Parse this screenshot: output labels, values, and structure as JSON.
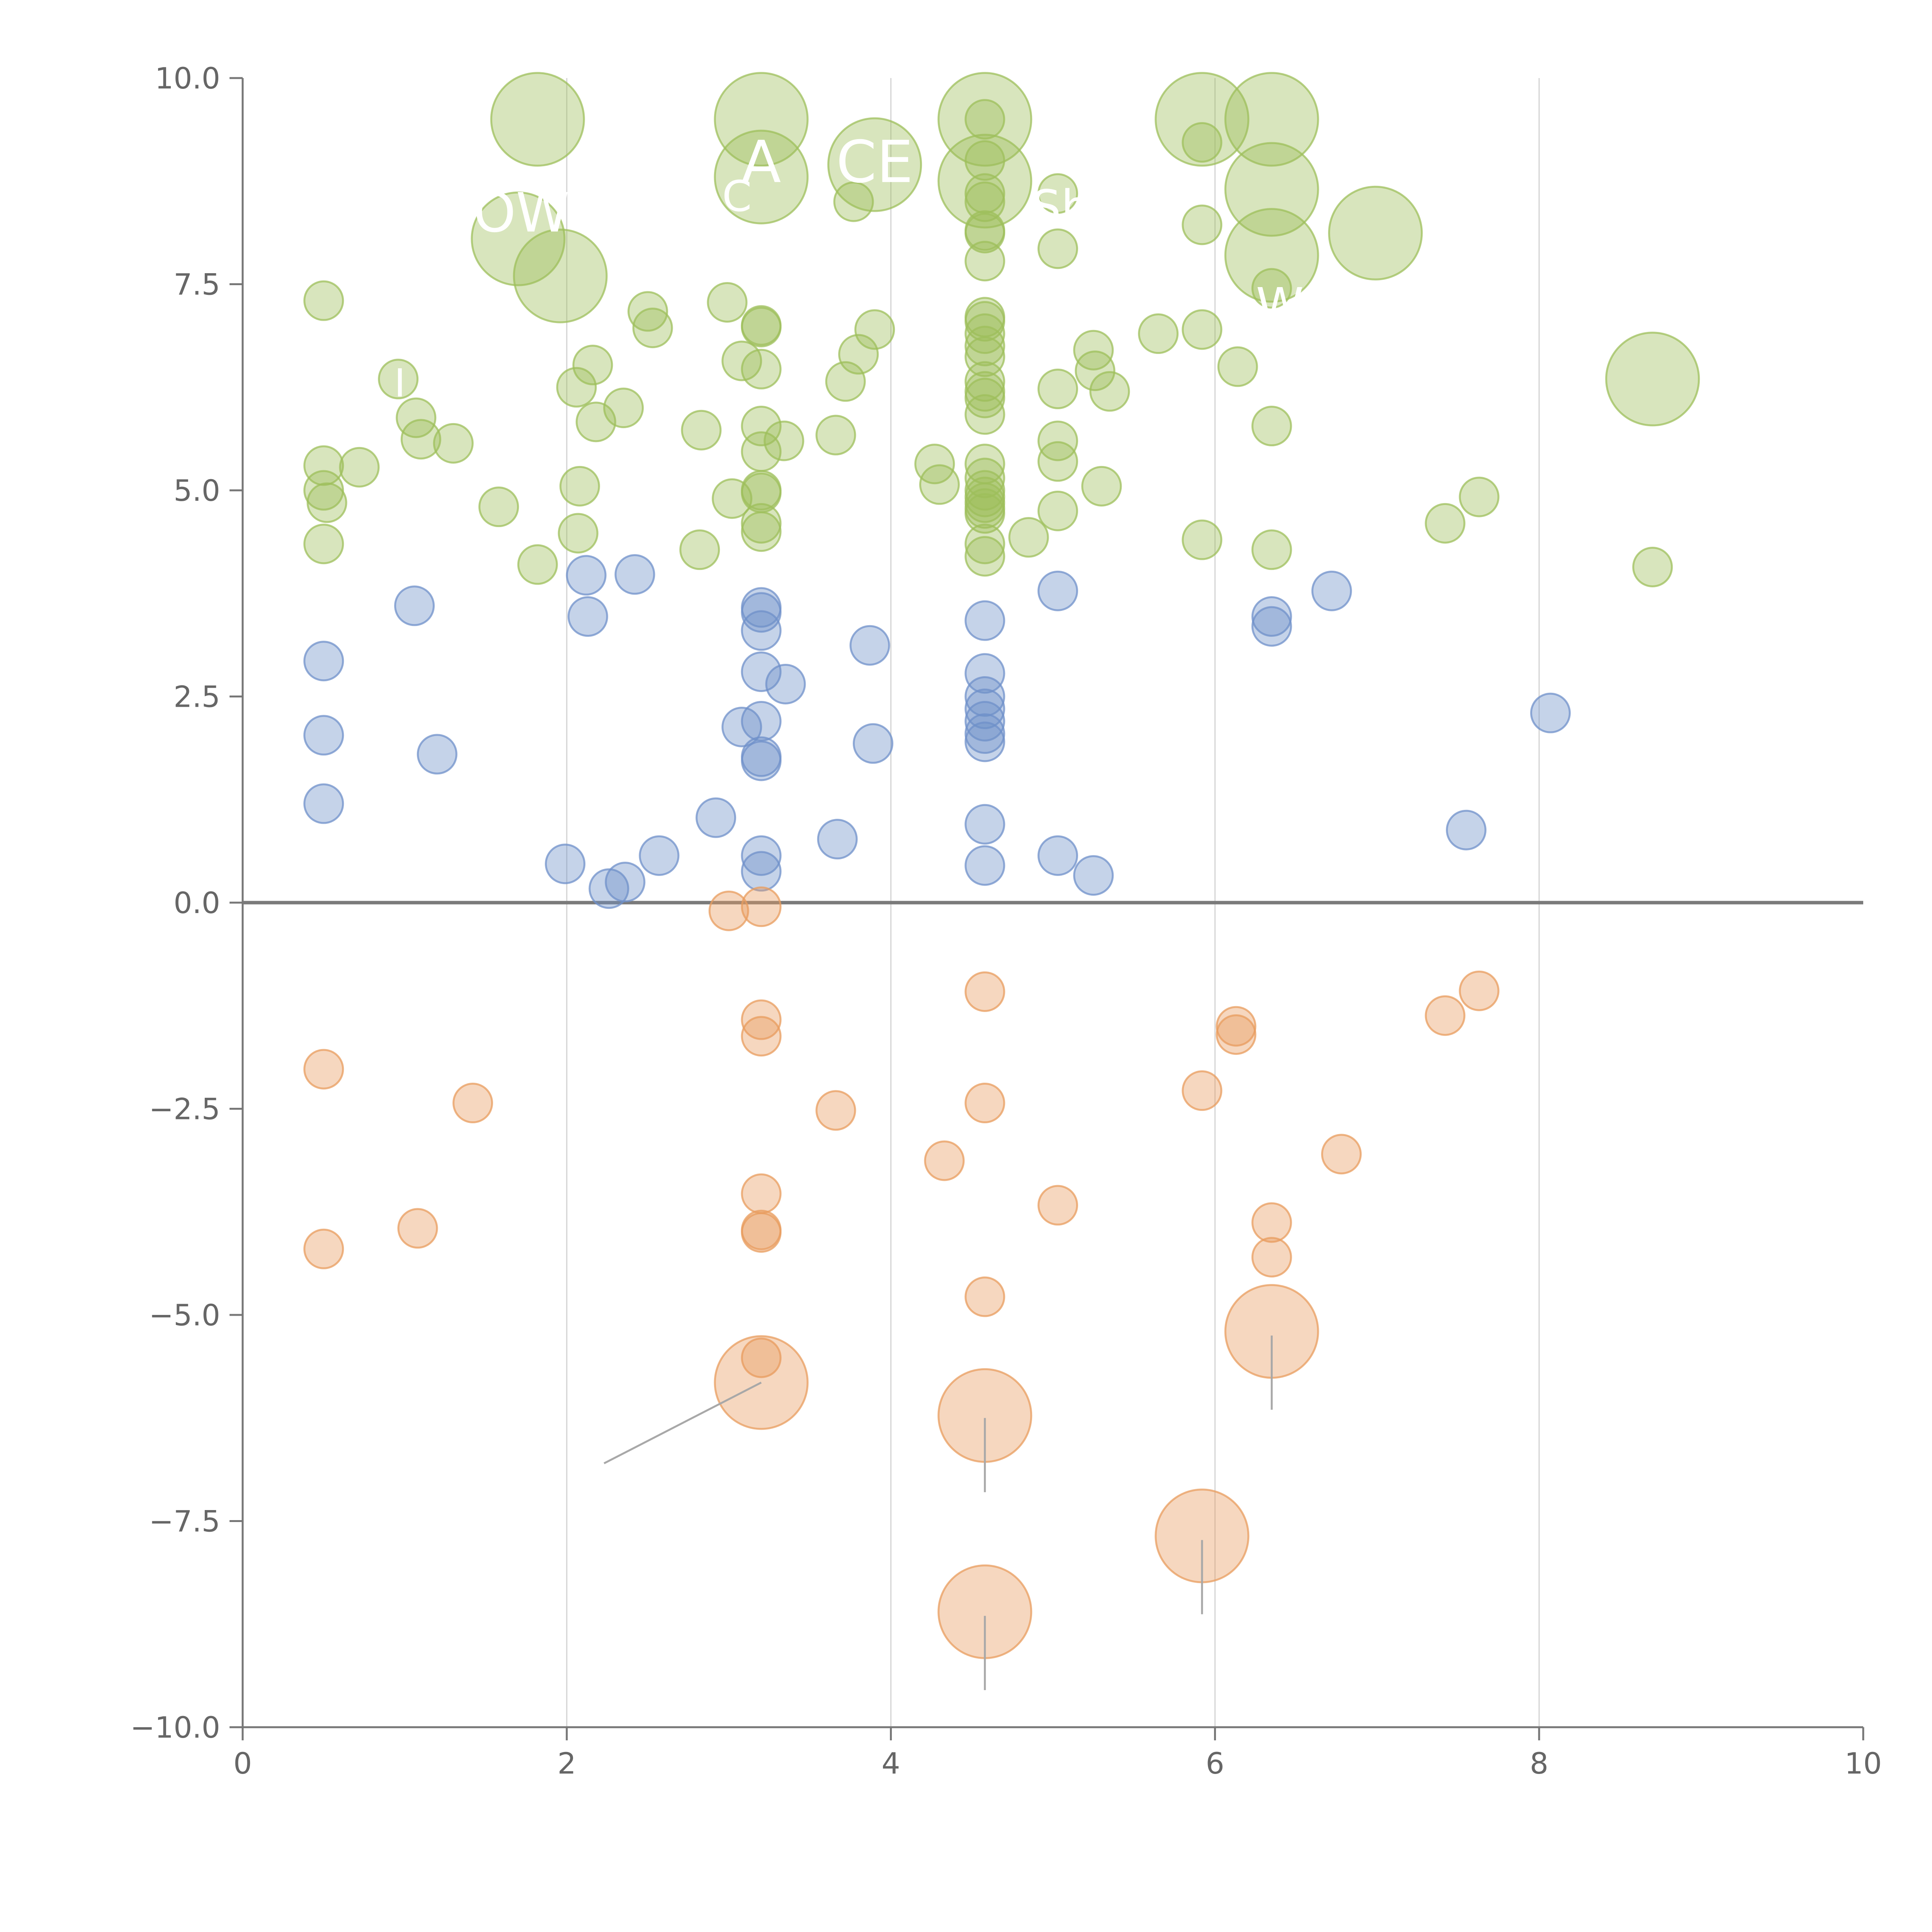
{
  "chart_data": {
    "type": "scatter",
    "title": "",
    "xlabel": "",
    "ylabel": "",
    "xlim": [
      0,
      10
    ],
    "ylim": [
      -10,
      10
    ],
    "xticks": [
      0,
      2,
      4,
      6,
      8,
      10
    ],
    "yticks": [
      10,
      7.5,
      5,
      2.5,
      0,
      -2.5,
      -5,
      -7.5,
      -10
    ],
    "x_tick_labels": [
      "0",
      "2",
      "4",
      "6",
      "8",
      "10"
    ],
    "y_tick_labels": [
      "10.0",
      "7.5",
      "5.0",
      "2.5",
      "0.0",
      "−2.5",
      "−5.0",
      "−7.5",
      "−10.0"
    ],
    "x_gridlines": [
      2,
      4,
      6,
      8
    ],
    "zero_line": true,
    "legend": "none",
    "colors": {
      "green": "#9dbf5b",
      "blue": "#6f90c9",
      "orange": "#e89c5e"
    },
    "series": [
      {
        "color": "green",
        "points": [
          {
            "x": 0.5,
            "y": 7.3,
            "r": 1
          },
          {
            "x": 0.5,
            "y": 5.3,
            "r": 1
          },
          {
            "x": 0.5,
            "y": 5.0,
            "r": 1
          },
          {
            "x": 0.52,
            "y": 4.85,
            "r": 1
          },
          {
            "x": 0.5,
            "y": 4.35,
            "r": 1
          },
          {
            "x": 0.72,
            "y": 5.28,
            "r": 1
          },
          {
            "x": 0.96,
            "y": 6.35,
            "r": 1
          },
          {
            "x": 1.07,
            "y": 5.88,
            "r": 1
          },
          {
            "x": 1.1,
            "y": 5.62,
            "r": 1
          },
          {
            "x": 1.3,
            "y": 5.57,
            "r": 1
          },
          {
            "x": 1.58,
            "y": 4.8,
            "r": 1
          },
          {
            "x": 1.82,
            "y": 4.1,
            "r": 1
          },
          {
            "x": 1.82,
            "y": 9.5,
            "r": 2.4
          },
          {
            "x": 1.7,
            "y": 8.05,
            "r": 2.4
          },
          {
            "x": 1.96,
            "y": 7.6,
            "r": 2.4
          },
          {
            "x": 2.06,
            "y": 6.25,
            "r": 1
          },
          {
            "x": 2.16,
            "y": 6.52,
            "r": 1
          },
          {
            "x": 2.18,
            "y": 5.83,
            "r": 1
          },
          {
            "x": 2.35,
            "y": 6.0,
            "r": 1
          },
          {
            "x": 2.08,
            "y": 5.05,
            "r": 1
          },
          {
            "x": 2.07,
            "y": 4.48,
            "r": 1
          },
          {
            "x": 2.5,
            "y": 7.17,
            "r": 1
          },
          {
            "x": 2.53,
            "y": 6.97,
            "r": 1
          },
          {
            "x": 2.83,
            "y": 5.73,
            "r": 1
          },
          {
            "x": 2.82,
            "y": 4.28,
            "r": 1
          },
          {
            "x": 2.99,
            "y": 7.28,
            "r": 1
          },
          {
            "x": 3.08,
            "y": 6.57,
            "r": 1
          },
          {
            "x": 3.02,
            "y": 4.9,
            "r": 1
          },
          {
            "x": 3.2,
            "y": 9.5,
            "r": 2.4
          },
          {
            "x": 3.2,
            "y": 8.8,
            "r": 2.4
          },
          {
            "x": 3.2,
            "y": 7.0,
            "r": 1
          },
          {
            "x": 3.2,
            "y": 6.98,
            "r": 1
          },
          {
            "x": 3.2,
            "y": 6.47,
            "r": 1
          },
          {
            "x": 3.2,
            "y": 5.78,
            "r": 1
          },
          {
            "x": 3.2,
            "y": 5.47,
            "r": 1
          },
          {
            "x": 3.2,
            "y": 5.0,
            "r": 1
          },
          {
            "x": 3.2,
            "y": 4.97,
            "r": 1
          },
          {
            "x": 3.2,
            "y": 4.6,
            "r": 1
          },
          {
            "x": 3.2,
            "y": 4.5,
            "r": 1
          },
          {
            "x": 3.34,
            "y": 5.6,
            "r": 1
          },
          {
            "x": 3.66,
            "y": 5.67,
            "r": 1
          },
          {
            "x": 3.72,
            "y": 6.32,
            "r": 1
          },
          {
            "x": 3.77,
            "y": 8.5,
            "r": 1
          },
          {
            "x": 3.8,
            "y": 6.65,
            "r": 1
          },
          {
            "x": 3.9,
            "y": 6.95,
            "r": 1
          },
          {
            "x": 3.9,
            "y": 8.95,
            "r": 2.4
          },
          {
            "x": 4.27,
            "y": 5.32,
            "r": 1
          },
          {
            "x": 4.3,
            "y": 5.07,
            "r": 1
          },
          {
            "x": 4.58,
            "y": 9.5,
            "r": 2.4
          },
          {
            "x": 4.58,
            "y": 8.75,
            "r": 2.4
          },
          {
            "x": 4.58,
            "y": 9.5,
            "r": 1
          },
          {
            "x": 4.58,
            "y": 9.0,
            "r": 1
          },
          {
            "x": 4.58,
            "y": 8.6,
            "r": 1
          },
          {
            "x": 4.58,
            "y": 8.5,
            "r": 1
          },
          {
            "x": 4.58,
            "y": 8.15,
            "r": 1
          },
          {
            "x": 4.58,
            "y": 8.12,
            "r": 1
          },
          {
            "x": 4.58,
            "y": 7.78,
            "r": 1
          },
          {
            "x": 4.58,
            "y": 7.1,
            "r": 1
          },
          {
            "x": 4.58,
            "y": 7.05,
            "r": 1
          },
          {
            "x": 4.58,
            "y": 6.9,
            "r": 1
          },
          {
            "x": 4.58,
            "y": 6.75,
            "r": 1
          },
          {
            "x": 4.58,
            "y": 6.62,
            "r": 1
          },
          {
            "x": 4.58,
            "y": 6.32,
            "r": 1
          },
          {
            "x": 4.58,
            "y": 6.2,
            "r": 1
          },
          {
            "x": 4.58,
            "y": 6.12,
            "r": 1
          },
          {
            "x": 4.58,
            "y": 5.92,
            "r": 1
          },
          {
            "x": 4.58,
            "y": 5.32,
            "r": 1
          },
          {
            "x": 4.58,
            "y": 5.15,
            "r": 1
          },
          {
            "x": 4.58,
            "y": 5.0,
            "r": 1
          },
          {
            "x": 4.58,
            "y": 4.92,
            "r": 1
          },
          {
            "x": 4.58,
            "y": 4.85,
            "r": 1
          },
          {
            "x": 4.58,
            "y": 4.78,
            "r": 1
          },
          {
            "x": 4.58,
            "y": 4.72,
            "r": 1
          },
          {
            "x": 4.58,
            "y": 4.35,
            "r": 1
          },
          {
            "x": 4.58,
            "y": 4.2,
            "r": 1
          },
          {
            "x": 4.85,
            "y": 4.43,
            "r": 1
          },
          {
            "x": 5.03,
            "y": 8.6,
            "r": 1
          },
          {
            "x": 5.03,
            "y": 7.93,
            "r": 1
          },
          {
            "x": 5.03,
            "y": 6.23,
            "r": 1
          },
          {
            "x": 5.03,
            "y": 5.6,
            "r": 1
          },
          {
            "x": 5.03,
            "y": 5.35,
            "r": 1
          },
          {
            "x": 5.03,
            "y": 4.75,
            "r": 1
          },
          {
            "x": 5.25,
            "y": 6.7,
            "r": 1
          },
          {
            "x": 5.26,
            "y": 6.45,
            "r": 1
          },
          {
            "x": 5.35,
            "y": 6.2,
            "r": 1
          },
          {
            "x": 5.3,
            "y": 5.05,
            "r": 1
          },
          {
            "x": 5.65,
            "y": 6.9,
            "r": 1
          },
          {
            "x": 5.92,
            "y": 9.5,
            "r": 2.4
          },
          {
            "x": 5.92,
            "y": 9.22,
            "r": 1
          },
          {
            "x": 5.92,
            "y": 8.22,
            "r": 1
          },
          {
            "x": 5.92,
            "y": 6.95,
            "r": 1
          },
          {
            "x": 5.92,
            "y": 4.4,
            "r": 1
          },
          {
            "x": 6.14,
            "y": 6.5,
            "r": 1
          },
          {
            "x": 6.35,
            "y": 9.5,
            "r": 2.4
          },
          {
            "x": 6.35,
            "y": 8.65,
            "r": 2.4
          },
          {
            "x": 6.35,
            "y": 7.85,
            "r": 2.4
          },
          {
            "x": 6.35,
            "y": 7.45,
            "r": 1
          },
          {
            "x": 6.35,
            "y": 5.78,
            "r": 1
          },
          {
            "x": 6.35,
            "y": 4.28,
            "r": 1
          },
          {
            "x": 6.99,
            "y": 8.12,
            "r": 2.4
          },
          {
            "x": 7.42,
            "y": 4.6,
            "r": 1
          },
          {
            "x": 7.63,
            "y": 4.92,
            "r": 1
          },
          {
            "x": 8.7,
            "y": 6.35,
            "r": 2.4
          },
          {
            "x": 8.7,
            "y": 4.07,
            "r": 1
          }
        ]
      },
      {
        "color": "blue",
        "points": [
          {
            "x": 0.5,
            "y": 2.93,
            "r": 1
          },
          {
            "x": 0.5,
            "y": 2.03,
            "r": 1
          },
          {
            "x": 0.5,
            "y": 1.2,
            "r": 1
          },
          {
            "x": 1.06,
            "y": 3.6,
            "r": 1
          },
          {
            "x": 1.2,
            "y": 1.8,
            "r": 1
          },
          {
            "x": 1.99,
            "y": 0.47,
            "r": 1
          },
          {
            "x": 2.12,
            "y": 3.97,
            "r": 1
          },
          {
            "x": 2.13,
            "y": 3.47,
            "r": 1
          },
          {
            "x": 2.26,
            "y": 0.17,
            "r": 1
          },
          {
            "x": 2.36,
            "y": 0.25,
            "r": 1
          },
          {
            "x": 2.42,
            "y": 3.98,
            "r": 1
          },
          {
            "x": 2.57,
            "y": 0.57,
            "r": 1
          },
          {
            "x": 2.92,
            "y": 1.03,
            "r": 1
          },
          {
            "x": 3.08,
            "y": 2.13,
            "r": 1
          },
          {
            "x": 3.2,
            "y": 3.58,
            "r": 1
          },
          {
            "x": 3.2,
            "y": 3.52,
            "r": 1
          },
          {
            "x": 3.2,
            "y": 3.3,
            "r": 1
          },
          {
            "x": 3.2,
            "y": 2.8,
            "r": 1
          },
          {
            "x": 3.2,
            "y": 2.2,
            "r": 1
          },
          {
            "x": 3.2,
            "y": 1.77,
            "r": 1
          },
          {
            "x": 3.2,
            "y": 1.72,
            "r": 1
          },
          {
            "x": 3.2,
            "y": 0.57,
            "r": 1
          },
          {
            "x": 3.2,
            "y": 0.38,
            "r": 1
          },
          {
            "x": 3.35,
            "y": 2.65,
            "r": 1
          },
          {
            "x": 3.67,
            "y": 0.77,
            "r": 1
          },
          {
            "x": 3.87,
            "y": 3.12,
            "r": 1
          },
          {
            "x": 3.89,
            "y": 1.93,
            "r": 1
          },
          {
            "x": 4.58,
            "y": 3.42,
            "r": 1
          },
          {
            "x": 4.58,
            "y": 2.78,
            "r": 1
          },
          {
            "x": 4.58,
            "y": 2.5,
            "r": 1
          },
          {
            "x": 4.58,
            "y": 2.35,
            "r": 1
          },
          {
            "x": 4.58,
            "y": 2.2,
            "r": 1
          },
          {
            "x": 4.58,
            "y": 2.05,
            "r": 1
          },
          {
            "x": 4.58,
            "y": 1.95,
            "r": 1
          },
          {
            "x": 4.58,
            "y": 0.95,
            "r": 1
          },
          {
            "x": 4.58,
            "y": 0.45,
            "r": 1
          },
          {
            "x": 5.03,
            "y": 3.78,
            "r": 1
          },
          {
            "x": 5.03,
            "y": 0.57,
            "r": 1
          },
          {
            "x": 5.25,
            "y": 0.33,
            "r": 1
          },
          {
            "x": 6.35,
            "y": 3.47,
            "r": 1
          },
          {
            "x": 6.35,
            "y": 3.35,
            "r": 1
          },
          {
            "x": 6.72,
            "y": 3.78,
            "r": 1
          },
          {
            "x": 7.55,
            "y": 0.88,
            "r": 1
          },
          {
            "x": 8.07,
            "y": 2.3,
            "r": 1
          }
        ]
      },
      {
        "color": "orange",
        "points": [
          {
            "x": 0.5,
            "y": -2.02,
            "r": 1
          },
          {
            "x": 0.5,
            "y": -4.2,
            "r": 1
          },
          {
            "x": 1.08,
            "y": -3.95,
            "r": 1
          },
          {
            "x": 1.42,
            "y": -2.43,
            "r": 1
          },
          {
            "x": 3.0,
            "y": -0.1,
            "r": 1
          },
          {
            "x": 3.2,
            "y": -0.05,
            "r": 1
          },
          {
            "x": 3.2,
            "y": -1.42,
            "r": 1
          },
          {
            "x": 3.2,
            "y": -1.62,
            "r": 1
          },
          {
            "x": 3.2,
            "y": -3.53,
            "r": 1
          },
          {
            "x": 3.2,
            "y": -3.97,
            "r": 1
          },
          {
            "x": 3.2,
            "y": -4.0,
            "r": 1
          },
          {
            "x": 3.2,
            "y": -5.52,
            "r": 1
          },
          {
            "x": 3.2,
            "y": -5.82,
            "r": 2.4
          },
          {
            "x": 3.66,
            "y": -2.52,
            "r": 1
          },
          {
            "x": 4.33,
            "y": -3.13,
            "r": 1
          },
          {
            "x": 4.58,
            "y": -1.08,
            "r": 1
          },
          {
            "x": 4.58,
            "y": -2.43,
            "r": 1
          },
          {
            "x": 4.58,
            "y": -4.78,
            "r": 1
          },
          {
            "x": 4.58,
            "y": -6.22,
            "r": 2.4
          },
          {
            "x": 4.58,
            "y": -8.6,
            "r": 2.4
          },
          {
            "x": 5.03,
            "y": -3.67,
            "r": 1
          },
          {
            "x": 5.92,
            "y": -2.28,
            "r": 1
          },
          {
            "x": 5.92,
            "y": -7.68,
            "r": 2.4
          },
          {
            "x": 6.13,
            "y": -1.5,
            "r": 1
          },
          {
            "x": 6.13,
            "y": -1.6,
            "r": 1
          },
          {
            "x": 6.35,
            "y": -3.88,
            "r": 1
          },
          {
            "x": 6.35,
            "y": -4.3,
            "r": 1
          },
          {
            "x": 6.35,
            "y": -5.2,
            "r": 2.4
          },
          {
            "x": 6.78,
            "y": -3.05,
            "r": 1
          },
          {
            "x": 7.42,
            "y": -1.37,
            "r": 1
          },
          {
            "x": 7.63,
            "y": -1.07,
            "r": 1
          }
        ]
      }
    ],
    "annotations": [
      {
        "text": "OW",
        "x": 1.72,
        "y": 8.35,
        "size": 1.4
      },
      {
        "text": "C",
        "x": 3.05,
        "y": 8.6,
        "size": 1.1
      },
      {
        "text": "A",
        "x": 3.2,
        "y": 8.95,
        "size": 1.5
      },
      {
        "text": "CE",
        "x": 3.9,
        "y": 8.95,
        "size": 1.5
      },
      {
        "text": "Sh",
        "x": 5.05,
        "y": 8.45,
        "size": 1.2
      },
      {
        "text": "W",
        "x": 6.4,
        "y": 7.25,
        "size": 1.25
      },
      {
        "text": "I",
        "x": 0.97,
        "y": 6.35,
        "size": 1.0
      }
    ],
    "leader_lines": [
      {
        "x1": 3.2,
        "y1": -5.82,
        "x2": 2.23,
        "y2": -6.8
      },
      {
        "x1": 4.58,
        "y1": -6.25,
        "x2": 4.58,
        "y2": -7.15
      },
      {
        "x1": 4.58,
        "y1": -8.65,
        "x2": 4.58,
        "y2": -9.55
      },
      {
        "x1": 5.92,
        "y1": -7.73,
        "x2": 5.92,
        "y2": -8.63
      },
      {
        "x1": 6.35,
        "y1": -5.25,
        "x2": 6.35,
        "y2": -6.15
      }
    ]
  }
}
